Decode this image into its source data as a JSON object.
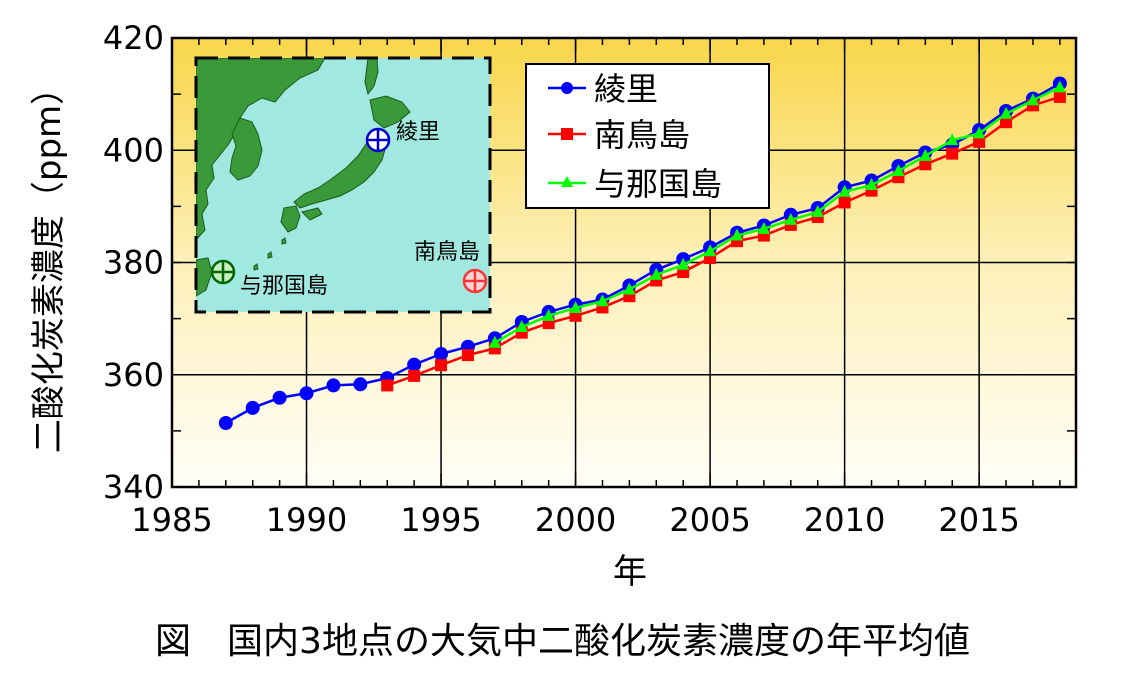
{
  "caption": "図　国内3地点の大気中二酸化炭素濃度の年平均値",
  "chart_data": {
    "type": "line",
    "title": "",
    "xlabel": "年",
    "ylabel": "二酸化炭素濃度（ppm）",
    "xlim": [
      1985,
      2018.6
    ],
    "ylim": [
      340,
      420
    ],
    "xticks": [
      1985,
      1990,
      1995,
      2000,
      2005,
      2010,
      2015
    ],
    "yticks": [
      340,
      360,
      380,
      400,
      420
    ],
    "grid": true,
    "background": "vertical gradient: yellow (#f9d64a) at top to near-white at bottom",
    "legend": {
      "position": "top-center"
    },
    "series": [
      {
        "name": "綾里",
        "color": "#0000ff",
        "marker": "circle",
        "x": [
          1987,
          1988,
          1989,
          1990,
          1991,
          1992,
          1993,
          1994,
          1995,
          1996,
          1997,
          1998,
          1999,
          2000,
          2001,
          2002,
          2003,
          2004,
          2005,
          2006,
          2007,
          2008,
          2009,
          2010,
          2011,
          2012,
          2013,
          2014,
          2015,
          2016,
          2017,
          2018
        ],
        "y": [
          351.4,
          354.1,
          355.9,
          356.7,
          358.1,
          358.3,
          359.4,
          361.8,
          363.7,
          365.0,
          366.5,
          369.4,
          371.2,
          372.5,
          373.4,
          375.9,
          378.7,
          380.6,
          382.7,
          385.3,
          386.6,
          388.5,
          389.7,
          393.4,
          394.6,
          397.2,
          399.6,
          401.0,
          403.6,
          407.0,
          409.2,
          411.9
        ]
      },
      {
        "name": "南鳥島",
        "color": "#ff0000",
        "marker": "square",
        "x": [
          1993,
          1994,
          1995,
          1996,
          1997,
          1998,
          1999,
          2000,
          2001,
          2002,
          2003,
          2004,
          2005,
          2006,
          2007,
          2008,
          2009,
          2010,
          2011,
          2012,
          2013,
          2014,
          2015,
          2016,
          2017,
          2018
        ],
        "y": [
          358.1,
          359.8,
          361.7,
          363.5,
          364.7,
          367.5,
          369.2,
          370.5,
          372.0,
          374.0,
          376.8,
          378.3,
          380.8,
          383.8,
          384.8,
          386.7,
          388.1,
          390.7,
          392.8,
          395.2,
          397.5,
          399.4,
          401.5,
          405.0,
          408.0,
          409.5
        ]
      },
      {
        "name": "与那国島",
        "color": "#00ff00",
        "marker": "triangle",
        "x": [
          1997,
          1998,
          1999,
          2000,
          2001,
          2002,
          2003,
          2004,
          2005,
          2006,
          2007,
          2008,
          2009,
          2010,
          2011,
          2012,
          2013,
          2014,
          2015,
          2016,
          2017,
          2018
        ],
        "y": [
          365.7,
          368.5,
          370.5,
          371.9,
          373.1,
          375.2,
          377.8,
          379.6,
          382.0,
          384.8,
          386.0,
          387.6,
          389.0,
          392.6,
          393.8,
          396.3,
          399.0,
          401.8,
          403.0,
          406.5,
          408.9,
          411.2
        ]
      }
    ],
    "inset_map": {
      "background": "#a0e8e0",
      "land_color": "#3a9a3a",
      "stations": [
        {
          "label": "綾里",
          "color": "#0000cc"
        },
        {
          "label": "南鳥島",
          "color": "#ff3333"
        },
        {
          "label": "与那国島",
          "color": "#006600"
        }
      ]
    }
  }
}
